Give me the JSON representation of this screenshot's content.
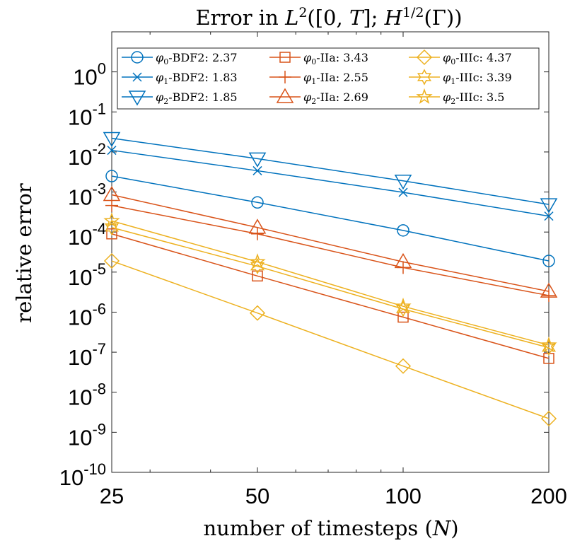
{
  "chart_data": {
    "type": "line",
    "title": "Error in L²([0, T]; H^{1/2}(Γ))",
    "title_parts": {
      "prefix": "Error in ",
      "L": "L",
      "sq": "2",
      "mid": "([0, ",
      "T": "T",
      "semi": "]; ",
      "H": "H",
      "exp": "1/2",
      "gamma": "(Γ))"
    },
    "xlabel_parts": {
      "prefix": "number of timesteps (",
      "N": "N",
      "suffix": ")"
    },
    "xlabel": "number of timesteps (N)",
    "ylabel": "relative error",
    "xscale": "log",
    "yscale": "log",
    "x": [
      25,
      50,
      100,
      200
    ],
    "xlim": [
      25,
      200
    ],
    "ylim": [
      1e-10,
      10
    ],
    "x_ticks": [
      25,
      50,
      100,
      200
    ],
    "x_tick_labels": [
      "25",
      "50",
      "100",
      "200"
    ],
    "y_ticks": [
      1e-10,
      1e-09,
      1e-08,
      1e-07,
      1e-06,
      1e-05,
      0.0001,
      0.001,
      0.01,
      0.1,
      1
    ],
    "y_tick_labels": [
      {
        "base": "10",
        "exp": "-10"
      },
      {
        "base": "10",
        "exp": "-9"
      },
      {
        "base": "10",
        "exp": "-8"
      },
      {
        "base": "10",
        "exp": "-7"
      },
      {
        "base": "10",
        "exp": "-6"
      },
      {
        "base": "10",
        "exp": "-5"
      },
      {
        "base": "10",
        "exp": "-4"
      },
      {
        "base": "10",
        "exp": "-3"
      },
      {
        "base": "10",
        "exp": "-2"
      },
      {
        "base": "10",
        "exp": "-1"
      },
      {
        "base": "10",
        "exp": "0"
      }
    ],
    "grid": false,
    "legend_position": "top",
    "series": [
      {
        "name": "φ0-BDF2: 2.37",
        "sym": "φ",
        "sub": "0",
        "method": "-BDF2:",
        "rate": "2.37",
        "color": "#0072BD",
        "marker": "circle",
        "values": [
          0.0025,
          0.00055,
          0.00011,
          1.9e-05
        ]
      },
      {
        "name": "φ1-BDF2: 1.83",
        "sym": "φ",
        "sub": "1",
        "method": "-BDF2:",
        "rate": "1.83",
        "color": "#0072BD",
        "marker": "x",
        "values": [
          0.011,
          0.0034,
          0.00098,
          0.00025
        ]
      },
      {
        "name": "φ2-BDF2: 1.85",
        "sym": "φ",
        "sub": "2",
        "method": "-BDF2:",
        "rate": "1.85",
        "color": "#0072BD",
        "marker": "triangle-down",
        "values": [
          0.022,
          0.0068,
          0.0019,
          0.00049
        ]
      },
      {
        "name": "φ0-IIa: 3.43",
        "sym": "φ",
        "sub": "0",
        "method": "-IIa:",
        "rate": "3.43",
        "color": "#D95319",
        "marker": "square",
        "values": [
          9e-05,
          8e-06,
          7.5e-07,
          7e-08
        ]
      },
      {
        "name": "φ1-IIa: 2.55",
        "sym": "φ",
        "sub": "1",
        "method": "-IIa:",
        "rate": "2.55",
        "color": "#D95319",
        "marker": "plus",
        "values": [
          0.00046,
          9e-05,
          1.3e-05,
          2.6e-06
        ]
      },
      {
        "name": "φ2-IIa: 2.69",
        "sym": "φ",
        "sub": "2",
        "method": "-IIa:",
        "rate": "2.69",
        "color": "#D95319",
        "marker": "triangle-up",
        "values": [
          0.00085,
          0.00013,
          1.8e-05,
          3.3e-06
        ]
      },
      {
        "name": "φ0-IIIc: 4.37",
        "sym": "φ",
        "sub": "0",
        "method": "-IIIc:",
        "rate": "4.37",
        "color": "#EDB120",
        "marker": "diamond",
        "values": [
          1.9e-05,
          9.5e-07,
          4.5e-08,
          2.2e-09
        ]
      },
      {
        "name": "φ1-IIIc: 3.39",
        "sym": "φ",
        "sub": "1",
        "method": "-IIIc:",
        "rate": "3.39",
        "color": "#EDB120",
        "marker": "hexagram",
        "values": [
          0.00013,
          1.4e-05,
          1.2e-06,
          1.3e-07
        ]
      },
      {
        "name": "φ2-IIIc: 3.5",
        "sym": "φ",
        "sub": "2",
        "method": "-IIIc:",
        "rate": "3.5",
        "color": "#EDB120",
        "marker": "pentagram",
        "values": [
          0.00019,
          1.8e-05,
          1.4e-06,
          1.5e-07
        ]
      }
    ]
  }
}
